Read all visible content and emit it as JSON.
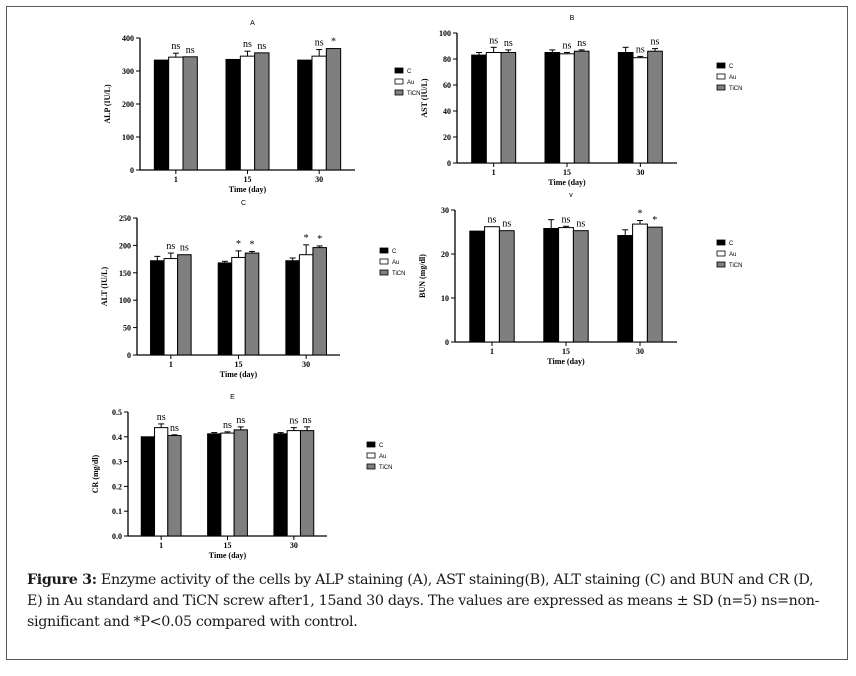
{
  "caption": {
    "label": "Figure 3:",
    "text": "Enzyme activity of the cells by ALP staining (A), AST staining(B), ALT staining (C) and BUN and CR (D, E) in Au standard and TiCN screw after1, 15and 30 days. The values are expressed as means ± SD (n=5) ns=non-significant and *P<0.05 compared with control."
  },
  "chart_data": [
    {
      "id": "A",
      "type": "bar",
      "title": "A",
      "categories": [
        "1",
        "15",
        "30"
      ],
      "xlabel": "Time (day)",
      "ylabel": "ALP (IU/L)",
      "ylim": [
        0,
        400
      ],
      "yticks": [
        "0",
        "100",
        "200",
        "300",
        "400"
      ],
      "legend": [
        "C",
        "Au",
        "TiCN"
      ],
      "legend_position": "right",
      "series": [
        {
          "name": "C",
          "color": "#000000",
          "values": [
            333,
            335,
            333
          ],
          "sd": [
            0,
            0,
            0
          ],
          "labels": [
            "",
            "",
            ""
          ]
        },
        {
          "name": "Au",
          "color": "#ffffff",
          "values": [
            342,
            345,
            345
          ],
          "sd": [
            12,
            15,
            20
          ],
          "labels": [
            "ns",
            "ns",
            "ns"
          ]
        },
        {
          "name": "TiCN",
          "color": "#7f7f7f",
          "values": [
            343,
            355,
            368
          ],
          "sd": [
            0,
            0,
            0
          ],
          "labels": [
            "ns",
            "ns",
            "*"
          ]
        }
      ]
    },
    {
      "id": "B",
      "type": "bar",
      "title": "B",
      "categories": [
        "1",
        "15",
        "30"
      ],
      "xlabel": "Time (day)",
      "ylabel": "AST (IU/L)",
      "ylim": [
        0,
        100
      ],
      "yticks": [
        "0",
        "20",
        "40",
        "60",
        "80",
        "100"
      ],
      "legend": [
        "C",
        "Au",
        "TiCN"
      ],
      "legend_position": "right",
      "series": [
        {
          "name": "C",
          "color": "#000000",
          "values": [
            83,
            85,
            85
          ],
          "sd": [
            2,
            2,
            4
          ],
          "labels": [
            "",
            "",
            ""
          ]
        },
        {
          "name": "Au",
          "color": "#ffffff",
          "values": [
            85,
            84,
            81
          ],
          "sd": [
            4,
            1,
            1
          ],
          "labels": [
            "ns",
            "ns",
            "ns"
          ]
        },
        {
          "name": "TiCN",
          "color": "#7f7f7f",
          "values": [
            85,
            86,
            86
          ],
          "sd": [
            2,
            1,
            2
          ],
          "labels": [
            "ns",
            "ns",
            "ns"
          ]
        }
      ]
    },
    {
      "id": "C",
      "type": "bar",
      "title": "C",
      "categories": [
        "1",
        "15",
        "30"
      ],
      "xlabel": "Time (day)",
      "ylabel": "ALT (IU/L)",
      "ylim": [
        0,
        250
      ],
      "yticks": [
        "0",
        "50",
        "100",
        "150",
        "200",
        "250"
      ],
      "legend": [
        "C",
        "Au",
        "TiCN"
      ],
      "legend_position": "right",
      "series": [
        {
          "name": "C",
          "color": "#000000",
          "values": [
            172,
            168,
            172
          ],
          "sd": [
            8,
            3,
            5
          ],
          "labels": [
            "",
            "",
            ""
          ]
        },
        {
          "name": "Au",
          "color": "#ffffff",
          "values": [
            176,
            178,
            183
          ],
          "sd": [
            10,
            12,
            18
          ],
          "labels": [
            "ns",
            "*",
            "*"
          ]
        },
        {
          "name": "TiCN",
          "color": "#7f7f7f",
          "values": [
            183,
            186,
            196
          ],
          "sd": [
            0,
            3,
            3
          ],
          "labels": [
            "ns",
            "*",
            "*"
          ]
        }
      ]
    },
    {
      "id": "D",
      "type": "bar",
      "title": "v",
      "categories": [
        "1",
        "15",
        "30"
      ],
      "xlabel": "Time (day)",
      "ylabel": "BUN (mg/dl)",
      "ylim": [
        0,
        30
      ],
      "yticks": [
        "0",
        "10",
        "20",
        "30"
      ],
      "legend": [
        "C",
        "Au",
        "TiCN"
      ],
      "legend_position": "right",
      "series": [
        {
          "name": "C",
          "color": "#000000",
          "values": [
            25.2,
            25.8,
            24.2
          ],
          "sd": [
            0,
            2,
            1.3
          ],
          "labels": [
            "",
            "",
            ""
          ]
        },
        {
          "name": "Au",
          "color": "#ffffff",
          "values": [
            26.2,
            26.0,
            26.8
          ],
          "sd": [
            0,
            0.3,
            0.8
          ],
          "labels": [
            "ns",
            "ns",
            "*"
          ]
        },
        {
          "name": "TiCN",
          "color": "#7f7f7f",
          "values": [
            25.3,
            25.3,
            26.1
          ],
          "sd": [
            0,
            0,
            0
          ],
          "labels": [
            "ns",
            "ns",
            "*"
          ]
        }
      ]
    },
    {
      "id": "E",
      "type": "bar",
      "title": "E",
      "categories": [
        "1",
        "15",
        "30"
      ],
      "xlabel": "Time (day)",
      "ylabel": "CR (mg/dl)",
      "ylim": [
        0,
        0.5
      ],
      "yticks": [
        "0.0",
        "0.1",
        "0.2",
        "0.3",
        "0.4",
        "0.5"
      ],
      "legend": [
        "C",
        "Au",
        "TiCN"
      ],
      "legend_position": "right",
      "series": [
        {
          "name": "C",
          "color": "#000000",
          "values": [
            0.4,
            0.412,
            0.412
          ],
          "sd": [
            0,
            0.005,
            0.005
          ],
          "labels": [
            "",
            "",
            ""
          ]
        },
        {
          "name": "Au",
          "color": "#ffffff",
          "values": [
            0.437,
            0.415,
            0.425
          ],
          "sd": [
            0.015,
            0.005,
            0.012
          ],
          "labels": [
            "ns",
            "ns",
            "ns"
          ]
        },
        {
          "name": "TiCN",
          "color": "#7f7f7f",
          "values": [
            0.405,
            0.428,
            0.425
          ],
          "sd": [
            0.003,
            0.012,
            0.015
          ],
          "labels": [
            "ns",
            "ns",
            "ns"
          ]
        }
      ]
    }
  ]
}
